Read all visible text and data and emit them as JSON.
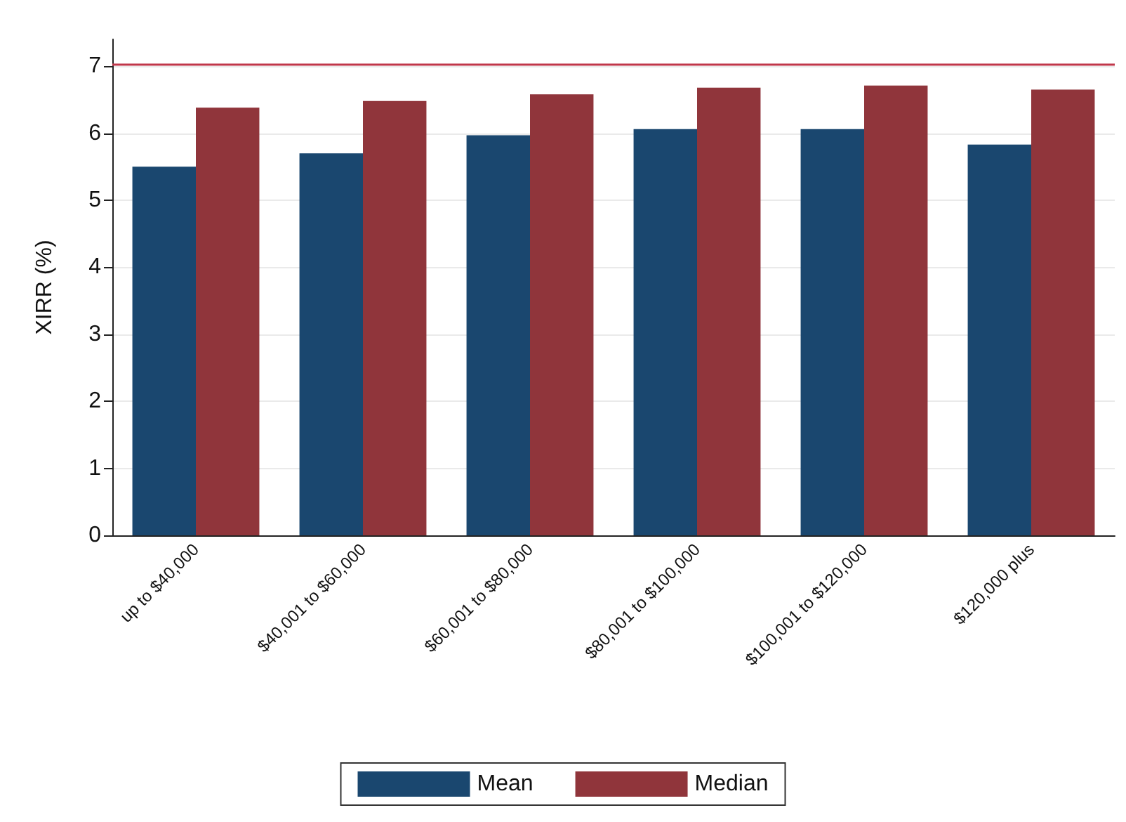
{
  "chart_data": {
    "type": "bar",
    "ylabel": "XIRR (%)",
    "categories": [
      "up to $40,000",
      "$40,001 to $60,000",
      "$60,001 to $80,000",
      "$80,001 to $100,000",
      "$100,001 to $120,000",
      "$120,000 plus"
    ],
    "series": [
      {
        "name": "Mean",
        "color": "#1a476f",
        "values": [
          5.5,
          5.7,
          5.97,
          6.06,
          6.06,
          5.83
        ]
      },
      {
        "name": "Median",
        "color": "#90353b",
        "values": [
          6.38,
          6.48,
          6.58,
          6.68,
          6.71,
          6.65
        ]
      }
    ],
    "ylim": [
      0,
      7.4
    ],
    "yticks": [
      0,
      1,
      2,
      3,
      4,
      5,
      6,
      7
    ],
    "grid": "y",
    "legend": "bottom",
    "ref_lines": [
      {
        "axis": "y",
        "value": 7.03,
        "color": "#c0374a"
      }
    ]
  }
}
